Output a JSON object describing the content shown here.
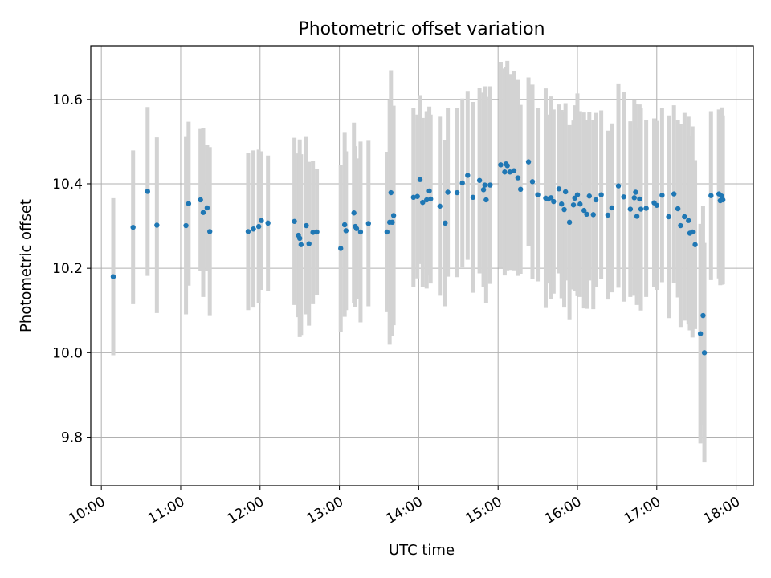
{
  "chart_data": {
    "type": "scatter",
    "title": "Photometric offset variation",
    "xlabel": "UTC time",
    "ylabel": "Photometric offset",
    "xlim": [
      "09:52",
      "18:13"
    ],
    "ylim": [
      9.685,
      10.727
    ],
    "x_ticks": [
      "10:00",
      "11:00",
      "12:00",
      "13:00",
      "14:00",
      "15:00",
      "16:00",
      "17:00",
      "18:00"
    ],
    "y_ticks": [
      "9.8",
      "10.0",
      "10.2",
      "10.4",
      "10.6"
    ],
    "grid": true,
    "legend": "none",
    "error_bar_color": "#d3d3d3",
    "marker_color": "#1f77b4",
    "series": [
      {
        "x": [
          "10:09",
          "10:24",
          "10:35",
          "10:42",
          "11:04",
          "11:06",
          "11:15",
          "11:17",
          "11:20",
          "11:22",
          "11:51",
          "11:55",
          "11:59",
          "12:01",
          "12:06",
          "12:26",
          "12:29",
          "12:30",
          "12:31",
          "12:35",
          "12:37",
          "12:40",
          "12:43",
          "13:01",
          "13:04",
          "13:05",
          "13:11",
          "13:12",
          "13:13",
          "13:16",
          "13:22",
          "13:36",
          "13:38",
          "13:39",
          "13:40",
          "13:41",
          "13:56",
          "13:59",
          "14:01",
          "14:03",
          "14:06",
          "14:08",
          "14:09",
          "14:16",
          "14:20",
          "14:22",
          "14:29",
          "14:33",
          "14:37",
          "14:41",
          "14:46",
          "14:49",
          "14:50",
          "14:51",
          "14:54",
          "15:02",
          "15:05",
          "15:06",
          "15:07",
          "15:09",
          "15:12",
          "15:15",
          "15:17",
          "15:23",
          "15:26",
          "15:30",
          "15:36",
          "15:38",
          "15:40",
          "15:42",
          "15:46",
          "15:48",
          "15:50",
          "15:51",
          "15:54",
          "15:57",
          "15:58",
          "16:00",
          "16:02",
          "16:05",
          "16:07",
          "16:09",
          "16:12",
          "16:14",
          "16:18",
          "16:23",
          "16:26",
          "16:31",
          "16:35",
          "16:40",
          "16:43",
          "16:44",
          "16:45",
          "16:47",
          "16:48",
          "16:52",
          "16:58",
          "17:00",
          "17:04",
          "17:09",
          "17:13",
          "17:16",
          "17:18",
          "17:21",
          "17:24",
          "17:25",
          "17:27",
          "17:29",
          "17:33",
          "17:35",
          "17:36",
          "17:41",
          "17:47",
          "17:48",
          "17:49",
          "17:50"
        ],
        "y": [
          10.18,
          10.297,
          10.382,
          10.302,
          10.301,
          10.353,
          10.362,
          10.332,
          10.343,
          10.287,
          10.287,
          10.293,
          10.299,
          10.313,
          10.307,
          10.311,
          10.278,
          10.271,
          10.256,
          10.301,
          10.258,
          10.285,
          10.286,
          10.247,
          10.303,
          10.289,
          10.331,
          10.299,
          10.294,
          10.286,
          10.306,
          10.286,
          10.309,
          10.379,
          10.309,
          10.325,
          10.368,
          10.37,
          10.41,
          10.356,
          10.362,
          10.383,
          10.364,
          10.347,
          10.307,
          10.38,
          10.379,
          10.402,
          10.42,
          10.368,
          10.408,
          10.386,
          10.397,
          10.362,
          10.397,
          10.445,
          10.428,
          10.447,
          10.443,
          10.428,
          10.431,
          10.414,
          10.387,
          10.452,
          10.405,
          10.374,
          10.366,
          10.364,
          10.367,
          10.358,
          10.388,
          10.352,
          10.339,
          10.381,
          10.309,
          10.35,
          10.366,
          10.374,
          10.352,
          10.337,
          10.328,
          10.371,
          10.327,
          10.362,
          10.374,
          10.326,
          10.343,
          10.395,
          10.369,
          10.34,
          10.367,
          10.38,
          10.323,
          10.364,
          10.34,
          10.342,
          10.355,
          10.349,
          10.373,
          10.322,
          10.376,
          10.341,
          10.301,
          10.322,
          10.313,
          10.283,
          10.286,
          10.256,
          10.045,
          10.088,
          10.0,
          10.372,
          10.376,
          10.36,
          10.371,
          10.362
        ],
        "err": [
          0.186,
          0.182,
          0.2,
          0.208,
          0.21,
          0.194,
          0.168,
          0.2,
          0.15,
          0.2,
          0.186,
          0.186,
          0.182,
          0.164,
          0.16,
          0.198,
          0.194,
          0.234,
          0.214,
          0.21,
          0.194,
          0.17,
          0.15,
          0.198,
          0.218,
          0.188,
          0.214,
          0.19,
          0.166,
          0.214,
          0.196,
          0.19,
          0.29,
          0.29,
          0.27,
          0.26,
          0.212,
          0.194,
          0.2,
          0.2,
          0.21,
          0.2,
          0.2,
          0.212,
          0.197,
          0.2,
          0.2,
          0.2,
          0.2,
          0.226,
          0.22,
          0.23,
          0.234,
          0.244,
          0.234,
          0.244,
          0.245,
          0.23,
          0.248,
          0.232,
          0.236,
          0.232,
          0.2,
          0.2,
          0.23,
          0.205,
          0.26,
          0.2,
          0.24,
          0.218,
          0.2,
          0.223,
          0.232,
          0.21,
          0.23,
          0.2,
          0.22,
          0.24,
          0.22,
          0.232,
          0.224,
          0.2,
          0.224,
          0.206,
          0.2,
          0.2,
          0.2,
          0.241,
          0.248,
          0.208,
          0.232,
          0.21,
          0.21,
          0.224,
          0.24,
          0.21,
          0.2,
          0.2,
          0.206,
          0.24,
          0.21,
          0.21,
          0.24,
          0.246,
          0.246,
          0.23,
          0.25,
          0.2,
          0.26,
          0.26,
          0.26,
          0.2,
          0.2,
          0.2,
          0.21,
          0.2
        ]
      }
    ]
  }
}
